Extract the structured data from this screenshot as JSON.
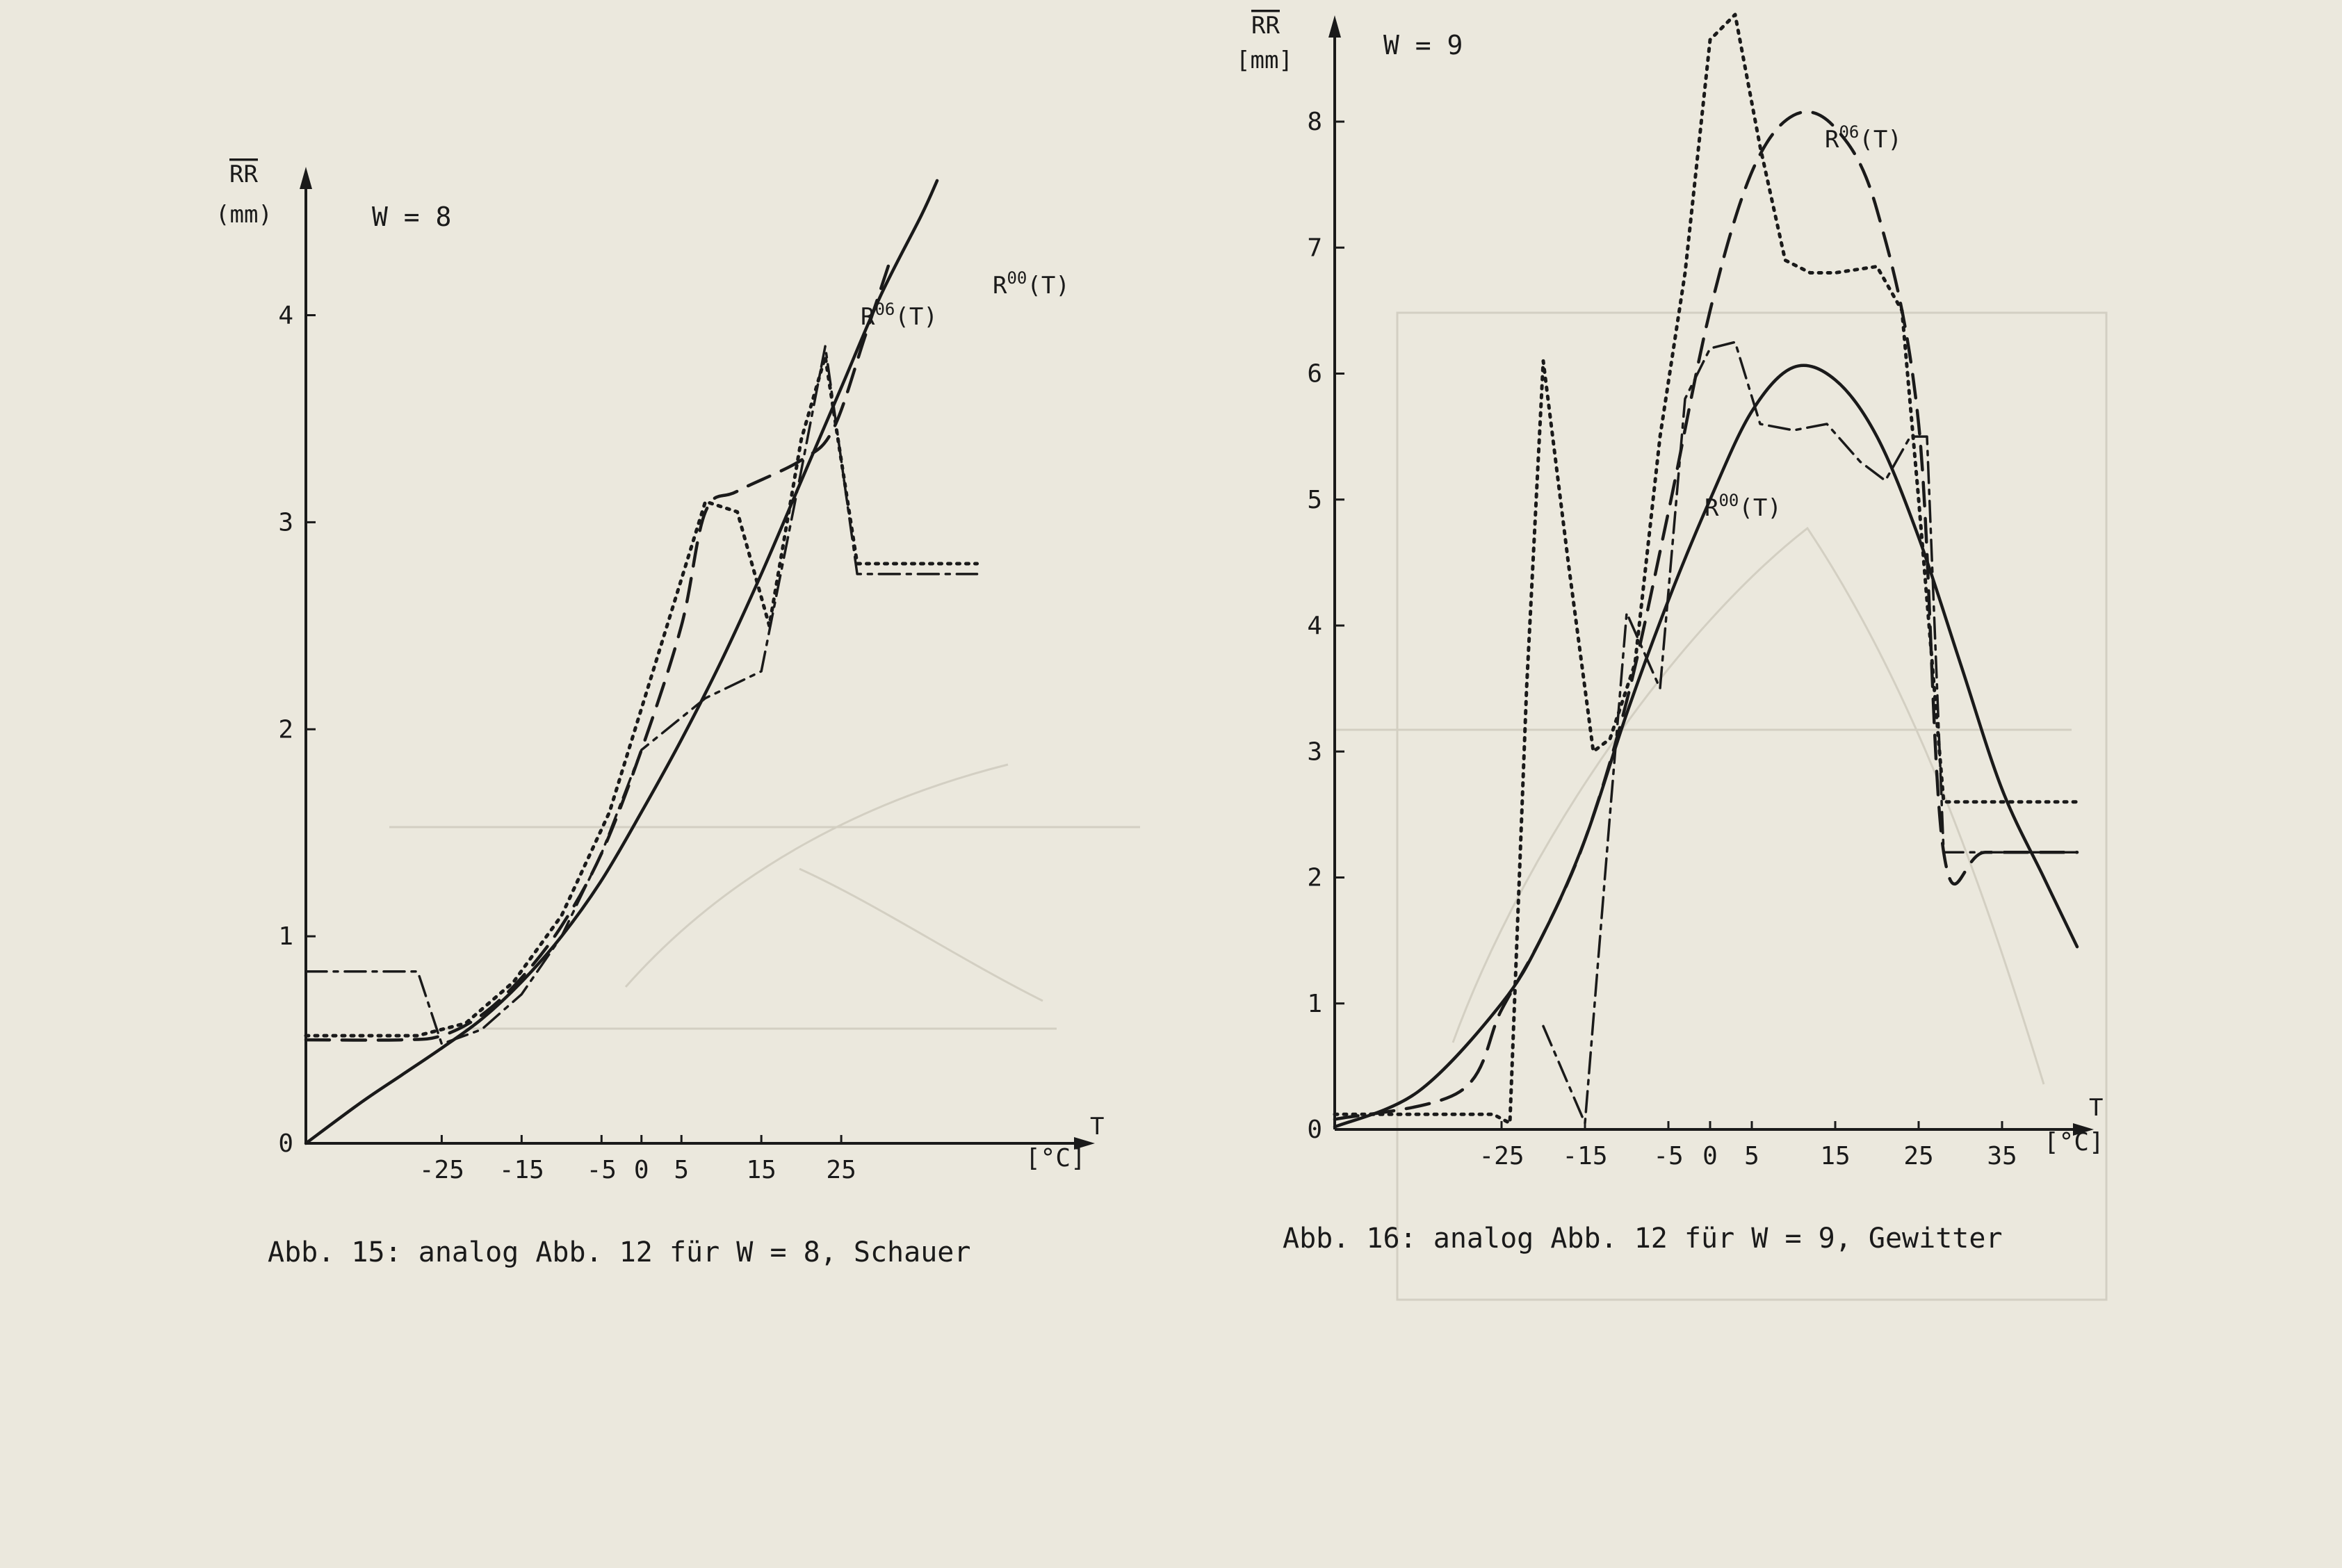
{
  "charts": [
    {
      "id": "left",
      "caption": "Abb. 15: analog Abb. 12 für W = 8, Schauer",
      "w_label": "W = 8",
      "y_label": "RR",
      "y_unit": "(mm)",
      "x_label": "T",
      "x_unit": "[°C]",
      "x_ticks": [
        "-25",
        "-15",
        "-5",
        "0",
        "5",
        "15",
        "25"
      ],
      "y_ticks": [
        "0",
        "1",
        "2",
        "3",
        "4"
      ],
      "label_r06": "R",
      "label_r06_sup": "06",
      "label_r06_tail": "(T)",
      "label_r00": "R",
      "label_r00_sup": "00",
      "label_r00_tail": "(T)"
    },
    {
      "id": "right",
      "caption": "Abb. 16: analog Abb. 12 für W = 9, Gewitter",
      "w_label": "W = 9",
      "y_label": "RR",
      "y_unit": "[mm]",
      "x_label": "T",
      "x_unit": "[°C]",
      "x_ticks": [
        "-25",
        "-15",
        "-5",
        "0",
        "5",
        "15",
        "25",
        "35"
      ],
      "y_ticks": [
        "0",
        "1",
        "2",
        "3",
        "4",
        "5",
        "6",
        "7",
        "8"
      ],
      "label_r06": "R",
      "label_r06_sup": "06",
      "label_r06_tail": "(T)",
      "label_r00": "R",
      "label_r00_sup": "00",
      "label_r00_tail": "(T)"
    }
  ],
  "chart_data": [
    {
      "type": "line",
      "title": "",
      "xlabel": "T [°C]",
      "ylabel": "RR (mm)",
      "xlim": [
        -42,
        45
      ],
      "ylim": [
        0,
        4.7
      ],
      "x_ticks": [
        -25,
        -15,
        -5,
        0,
        5,
        15,
        25
      ],
      "y_ticks": [
        0,
        1,
        2,
        3,
        4
      ],
      "series": [
        {
          "name": "R00(T)",
          "style": "solid-smooth",
          "x": [
            -42,
            -35,
            -30,
            -25,
            -20,
            -15,
            -10,
            -5,
            0,
            5,
            10,
            15,
            20,
            25,
            30,
            35,
            37
          ],
          "y": [
            0.0,
            0.2,
            0.33,
            0.46,
            0.6,
            0.78,
            1.0,
            1.27,
            1.6,
            1.95,
            2.33,
            2.75,
            3.2,
            3.65,
            4.1,
            4.48,
            4.65
          ]
        },
        {
          "name": "R06(T)",
          "style": "dashed",
          "x": [
            -42,
            -30,
            -25,
            -20,
            -15,
            -10,
            -5,
            0,
            5,
            8,
            12,
            20,
            24,
            28,
            31
          ],
          "y": [
            0.5,
            0.5,
            0.52,
            0.62,
            0.8,
            1.05,
            1.4,
            1.9,
            2.5,
            3.05,
            3.15,
            3.3,
            3.45,
            3.9,
            4.25
          ]
        },
        {
          "name": "",
          "style": "dotted",
          "x": [
            -42,
            -28,
            -22,
            -16,
            -10,
            -4,
            2,
            8,
            12,
            16,
            20,
            23,
            27,
            42
          ],
          "y": [
            0.52,
            0.52,
            0.58,
            0.78,
            1.1,
            1.6,
            2.35,
            3.1,
            3.05,
            2.5,
            3.4,
            3.8,
            2.8,
            2.8
          ]
        },
        {
          "name": "",
          "style": "dash-dot",
          "x": [
            -42,
            -28,
            -25,
            -20,
            -15,
            -10,
            -5,
            0,
            8,
            15,
            20,
            23,
            27,
            42
          ],
          "y": [
            0.83,
            0.83,
            0.48,
            0.55,
            0.72,
            1.0,
            1.4,
            1.9,
            2.15,
            2.28,
            3.25,
            3.85,
            2.75,
            2.75
          ]
        }
      ]
    },
    {
      "type": "line",
      "title": "",
      "xlabel": "T [°C]",
      "ylabel": "RR [mm]",
      "xlim": [
        -45,
        45
      ],
      "ylim": [
        0,
        8.8
      ],
      "x_ticks": [
        -25,
        -15,
        -5,
        0,
        5,
        15,
        25,
        35
      ],
      "y_ticks": [
        0,
        1,
        2,
        3,
        4,
        5,
        6,
        7,
        8
      ],
      "series": [
        {
          "name": "R00(T)",
          "style": "solid-smooth",
          "x": [
            -45,
            -35,
            -25,
            -20,
            -15,
            -10,
            -5,
            0,
            5,
            10,
            15,
            20,
            25,
            30,
            35,
            40,
            44
          ],
          "y": [
            0.02,
            0.3,
            1.0,
            1.55,
            2.3,
            3.3,
            4.2,
            5.0,
            5.7,
            6.05,
            5.95,
            5.5,
            4.7,
            3.7,
            2.7,
            2.0,
            1.45
          ]
        },
        {
          "name": "R06(T)",
          "style": "dashed",
          "x": [
            -45,
            -30,
            -25,
            -20,
            -15,
            -10,
            -5,
            0,
            5,
            10,
            15,
            20,
            25,
            28,
            33,
            44
          ],
          "y": [
            0.08,
            0.3,
            0.95,
            1.55,
            2.3,
            3.4,
            4.9,
            6.5,
            7.6,
            8.05,
            7.95,
            7.3,
            5.6,
            2.2,
            2.2,
            2.2
          ]
        },
        {
          "name": "",
          "style": "dotted",
          "x": [
            -45,
            -26,
            -24,
            -22,
            -20,
            -17,
            -14,
            -12,
            -9,
            -6,
            -3,
            0,
            3,
            6,
            9,
            12,
            15,
            20,
            23,
            25,
            28,
            44
          ],
          "y": [
            0.12,
            0.12,
            0.05,
            3.5,
            6.1,
            4.5,
            3.0,
            3.1,
            3.7,
            5.5,
            6.8,
            8.65,
            8.85,
            7.8,
            6.9,
            6.8,
            6.8,
            6.85,
            6.5,
            5.0,
            2.6,
            2.6
          ]
        },
        {
          "name": "",
          "style": "dash-dot",
          "x": [
            -20,
            -15,
            -12,
            -10,
            -6,
            -3,
            0,
            3,
            6,
            10,
            14,
            18,
            21,
            24,
            26,
            28,
            33,
            44
          ],
          "y": [
            0.82,
            0.05,
            2.5,
            4.1,
            3.5,
            5.8,
            6.2,
            6.25,
            5.6,
            5.55,
            5.6,
            5.3,
            5.15,
            5.5,
            5.5,
            2.2,
            2.2,
            2.2
          ]
        }
      ]
    }
  ]
}
